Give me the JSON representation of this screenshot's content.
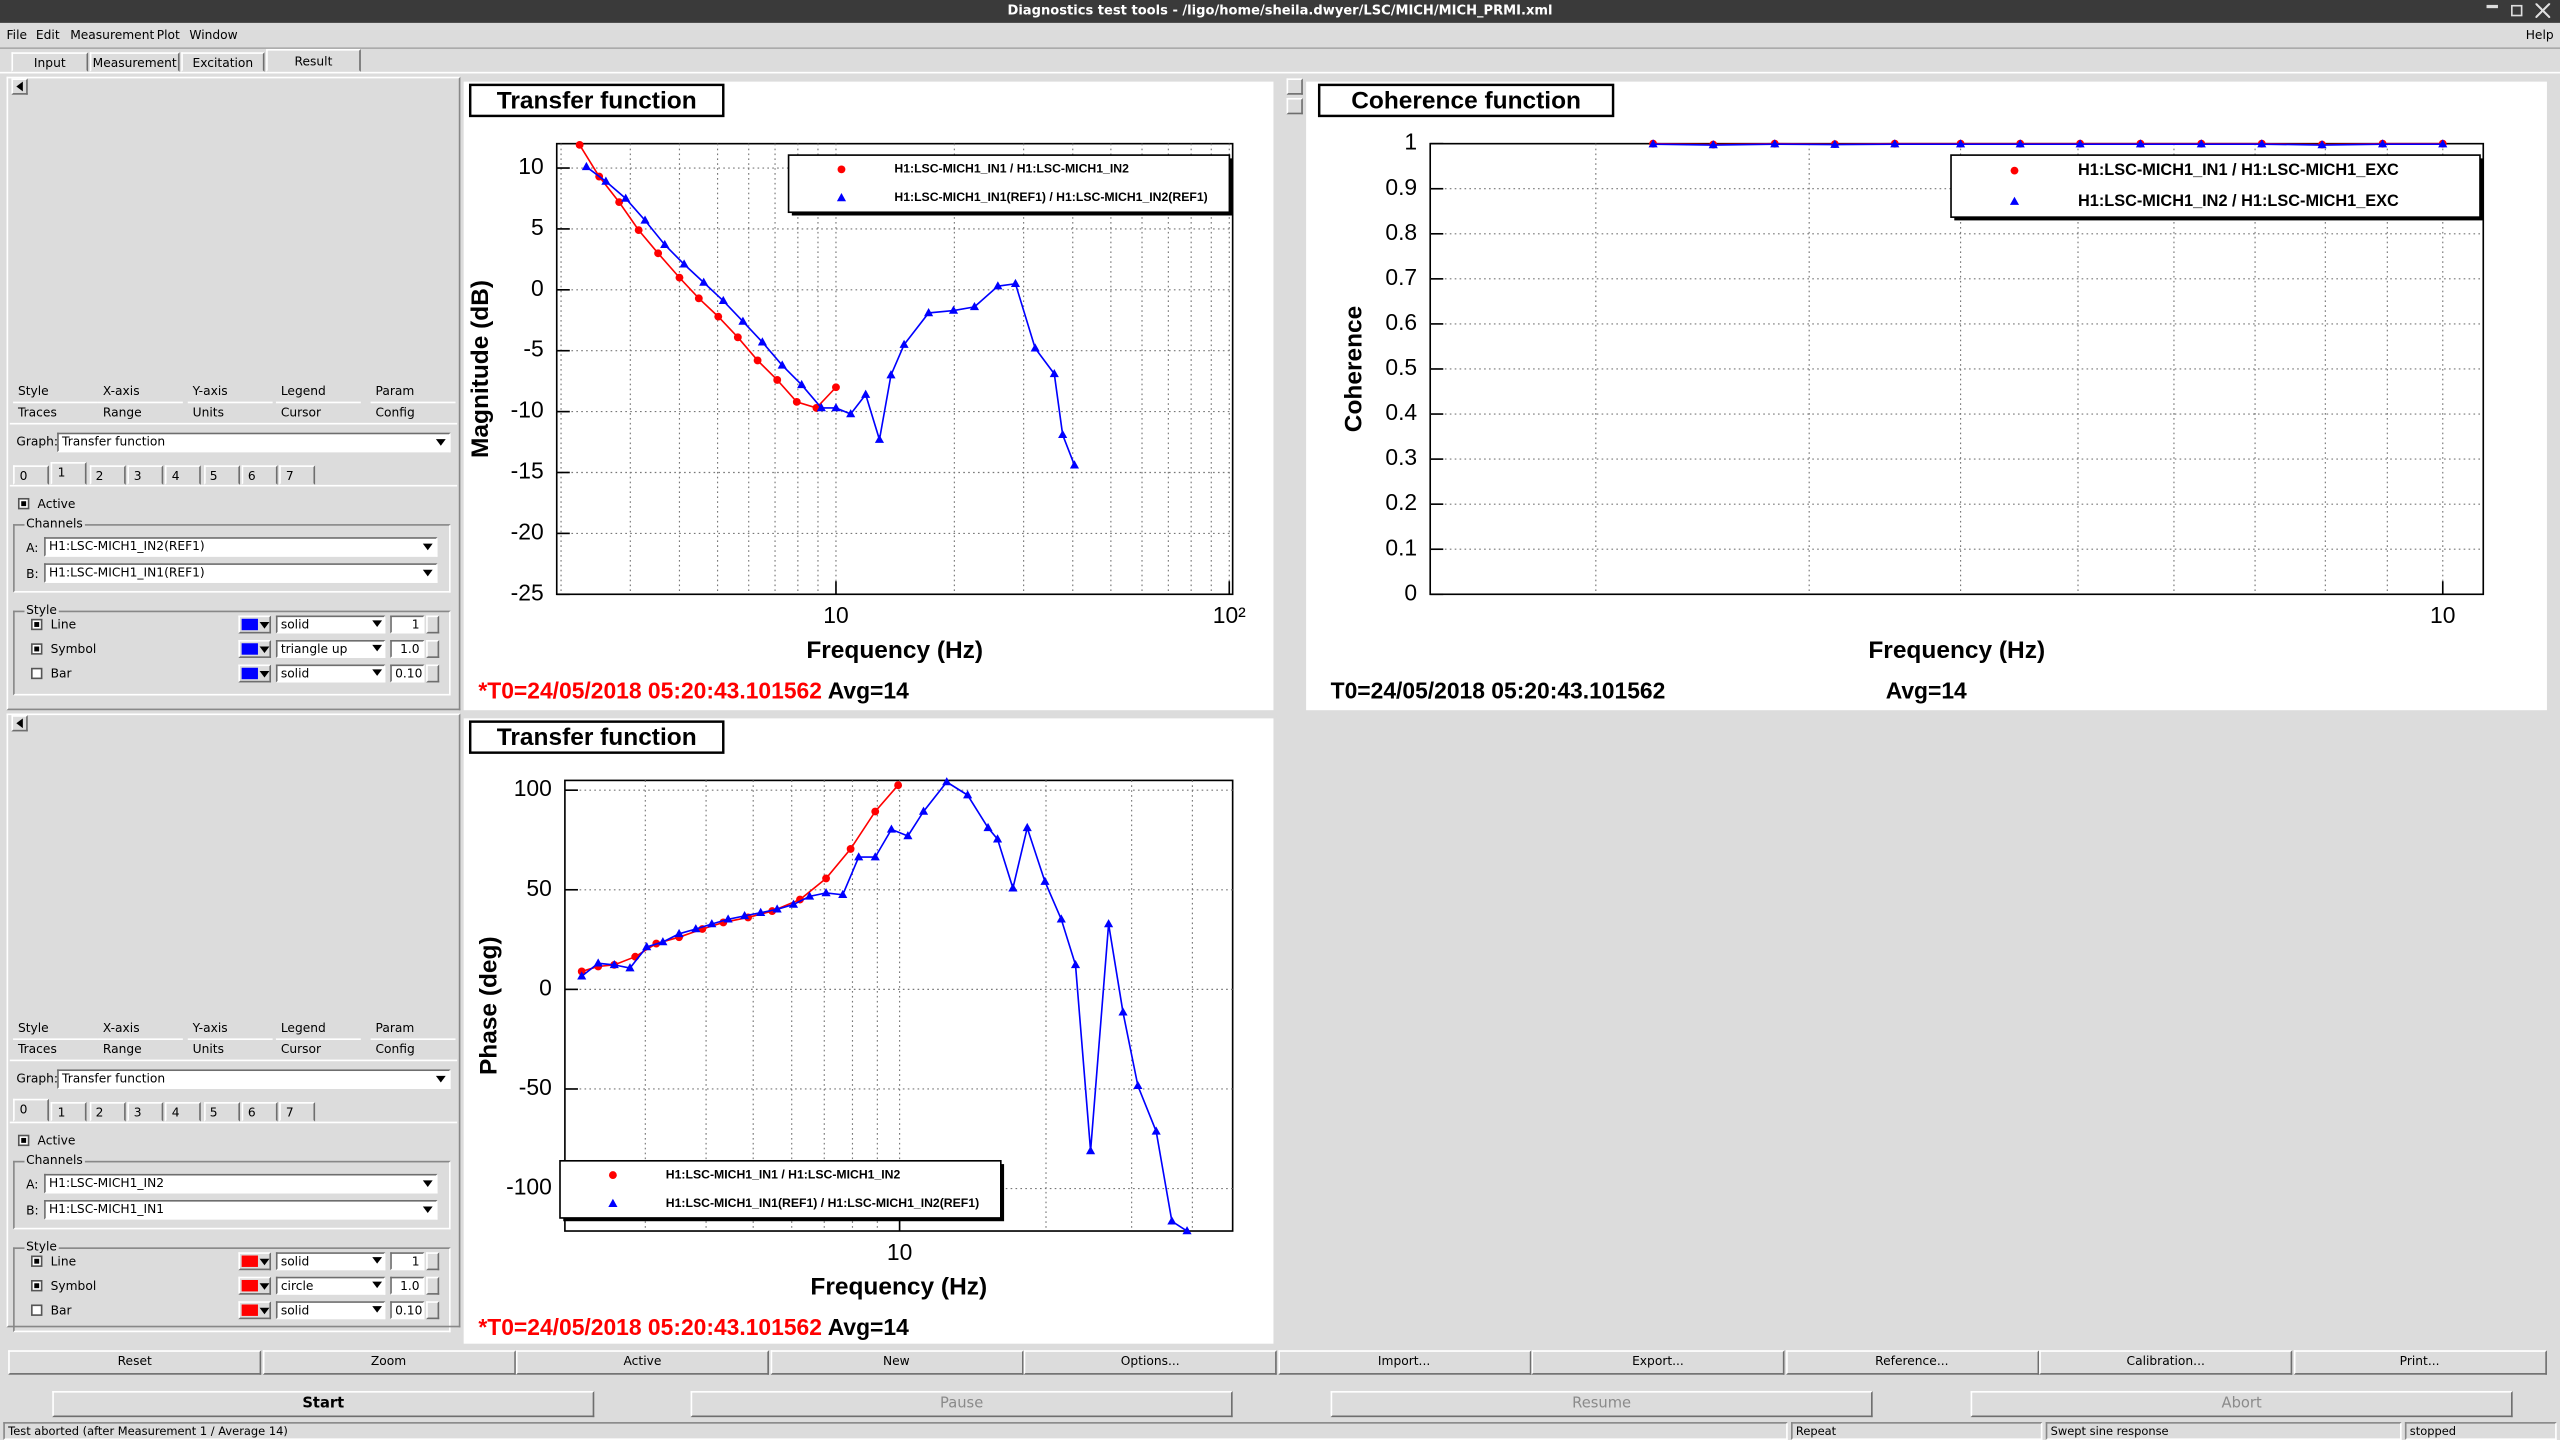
{
  "window": {
    "title": "Diagnostics test tools - /ligo/home/sheila.dwyer/LSC/MICH/MICH_PRMI.xml"
  },
  "menu": [
    "File",
    "Edit",
    "Measurement",
    "Plot",
    "Window"
  ],
  "help": "Help",
  "tabs": [
    "Input",
    "Measurement",
    "Excitation",
    "Result"
  ],
  "selected_tab": 3,
  "panels": [
    {
      "tabs_row1": [
        "Style",
        "X-axis",
        "Y-axis",
        "Legend",
        "Param"
      ],
      "tabs_row2": [
        "Traces",
        "Range",
        "Units",
        "Cursor",
        "Config"
      ],
      "graph_label": "Graph:",
      "graph": "Transfer function",
      "trace_tabs": [
        "0",
        "1",
        "2",
        "3",
        "4",
        "5",
        "6",
        "7"
      ],
      "selected_trace": 1,
      "active": "Active",
      "active_checked": true,
      "channels_label": "Channels",
      "a_label": "A:",
      "a": "H1:LSC-MICH1_IN2(REF1)",
      "b_label": "B:",
      "b": "H1:LSC-MICH1_IN1(REF1)",
      "style_label": "Style",
      "color": "#0000ff",
      "rows": [
        {
          "label": "Line",
          "checked": true,
          "style": "solid",
          "size": "1"
        },
        {
          "label": "Symbol",
          "checked": true,
          "style": "triangle up",
          "size": "1.0"
        },
        {
          "label": "Bar",
          "checked": false,
          "style": "solid",
          "size": "0.10"
        }
      ]
    },
    {
      "tabs_row1": [
        "Style",
        "X-axis",
        "Y-axis",
        "Legend",
        "Param"
      ],
      "tabs_row2": [
        "Traces",
        "Range",
        "Units",
        "Cursor",
        "Config"
      ],
      "graph_label": "Graph:",
      "graph": "Transfer function",
      "trace_tabs": [
        "0",
        "1",
        "2",
        "3",
        "4",
        "5",
        "6",
        "7"
      ],
      "selected_trace": 0,
      "active": "Active",
      "active_checked": true,
      "channels_label": "Channels",
      "a_label": "A:",
      "a": "H1:LSC-MICH1_IN2",
      "b_label": "B:",
      "b": "H1:LSC-MICH1_IN1",
      "style_label": "Style",
      "color": "#ff0000",
      "rows": [
        {
          "label": "Line",
          "checked": true,
          "style": "solid",
          "size": "1"
        },
        {
          "label": "Symbol",
          "checked": true,
          "style": "circle",
          "size": "1.0"
        },
        {
          "label": "Bar",
          "checked": false,
          "style": "solid",
          "size": "0.10"
        }
      ]
    }
  ],
  "chart_data": [
    {
      "type": "line",
      "title": "Transfer function",
      "xlabel": "Frequency (Hz)",
      "ylabel": "Magnitude (dB)",
      "xscale": "log",
      "xlim": [
        1.95,
        102
      ],
      "ylim": [
        -25,
        12
      ],
      "xticks": [
        10,
        {
          "value": 100,
          "label": "10²"
        }
      ],
      "xgrid": [
        2,
        3,
        4,
        5,
        6,
        7,
        8,
        9,
        10,
        20,
        30,
        40,
        50,
        60,
        70,
        80,
        90,
        100
      ],
      "yticks": [
        10,
        5,
        0,
        -5,
        -10,
        -15,
        -20,
        -25
      ],
      "grid": true,
      "legend": "upper right",
      "stamp": "*T0=24/05/2018 05:20:43.101562",
      "stamp_color": "#ff0000",
      "avg": "Avg=14",
      "series": [
        {
          "name": "H1:LSC-MICH1_IN1 / H1:LSC-MICH1_IN2",
          "color": "#ff0000",
          "marker": "circle",
          "x": [
            2.23,
            2.5,
            2.81,
            3.15,
            3.53,
            4.0,
            4.48,
            5.02,
            5.63,
            6.32,
            7.09,
            7.95,
            8.92,
            10.0
          ],
          "values": [
            11.9,
            9.3,
            7.2,
            4.9,
            3.0,
            1.0,
            -0.7,
            -2.2,
            -3.9,
            -5.8,
            -7.4,
            -9.2,
            -9.7,
            -8.0
          ]
        },
        {
          "name": "H1:LSC-MICH1_IN1(REF1) / H1:LSC-MICH1_IN2(REF1)",
          "color": "#0000ff",
          "marker": "triangle",
          "x": [
            2.32,
            2.6,
            2.92,
            3.27,
            3.67,
            4.11,
            4.61,
            5.17,
            5.8,
            6.5,
            7.3,
            8.18,
            9.18,
            10.0,
            10.9,
            11.9,
            12.9,
            13.8,
            14.9,
            17.2,
            19.9,
            22.5,
            25.8,
            28.6,
            32.1,
            35.9,
            37.7,
            40.4
          ],
          "values": [
            10.1,
            8.9,
            7.5,
            5.7,
            3.7,
            2.1,
            0.6,
            -0.9,
            -2.6,
            -4.3,
            -6.2,
            -7.8,
            -9.7,
            -9.7,
            -10.2,
            -8.6,
            -12.3,
            -7.0,
            -4.5,
            -1.9,
            -1.7,
            -1.4,
            0.3,
            0.5,
            -4.8,
            -6.9,
            -11.9,
            -14.4
          ]
        }
      ]
    },
    {
      "type": "line",
      "title": "Coherence function",
      "xlabel": "Frequency (Hz)",
      "ylabel": "Coherence",
      "xscale": "log",
      "xlim": [
        1.46,
        10.8
      ],
      "ylim": [
        0,
        1
      ],
      "xticks": [
        10
      ],
      "xgrid": [
        2,
        3,
        4,
        5,
        6,
        7,
        8,
        9,
        10
      ],
      "yticks": [
        1,
        0.9,
        0.8,
        0.7,
        0.6,
        0.5,
        0.4,
        0.3,
        0.2,
        0.1,
        0
      ],
      "grid": true,
      "legend": "upper right",
      "stamp": "T0=24/05/2018 05:20:43.101562",
      "stamp_color": "#000000",
      "avg": "Avg=14",
      "series": [
        {
          "name": "H1:LSC-MICH1_IN1 / H1:LSC-MICH1_EXC",
          "color": "#ff0000",
          "marker": "circle",
          "x": [
            2.23,
            2.5,
            2.81,
            3.15,
            3.53,
            4.0,
            4.48,
            5.02,
            5.63,
            6.32,
            7.09,
            7.95,
            8.92,
            10.0
          ],
          "values": [
            1,
            0.998,
            1,
            0.999,
            1,
            1,
            1,
            1,
            1,
            1,
            1,
            0.998,
            1,
            1
          ]
        },
        {
          "name": "H1:LSC-MICH1_IN2 / H1:LSC-MICH1_EXC",
          "color": "#0000ff",
          "marker": "triangle",
          "x": [
            2.23,
            2.5,
            2.81,
            3.15,
            3.53,
            4.0,
            4.48,
            5.02,
            5.63,
            6.32,
            7.09,
            7.95,
            8.92,
            10.0
          ],
          "values": [
            0.999,
            0.997,
            0.999,
            0.998,
            0.999,
            0.999,
            0.999,
            0.999,
            0.999,
            0.999,
            0.999,
            0.997,
            0.999,
            0.999
          ]
        }
      ]
    },
    {
      "type": "line",
      "title": "Transfer function",
      "xlabel": "Frequency (Hz)",
      "ylabel": "Phase (deg)",
      "xscale": "log",
      "xlim": [
        2.05,
        48.4
      ],
      "ylim": [
        -121.3,
        104.9
      ],
      "xticks": [
        10
      ],
      "xgrid": [
        3,
        4,
        5,
        6,
        7,
        8,
        9,
        10,
        20,
        30,
        40
      ],
      "yticks": [
        100,
        50,
        0,
        -50,
        -100
      ],
      "grid": true,
      "legend": "lower left",
      "stamp": "*T0=24/05/2018 05:20:43.101562",
      "stamp_color": "#ff0000",
      "avg": "Avg=14",
      "series": [
        {
          "name": "H1:LSC-MICH1_IN1 / H1:LSC-MICH1_IN2",
          "color": "#ff0000",
          "marker": "circle",
          "x": [
            2.22,
            2.4,
            2.59,
            2.86,
            3.16,
            3.52,
            3.93,
            4.34,
            4.88,
            5.47,
            6.24,
            7.06,
            7.93,
            8.91,
            9.93
          ],
          "values": [
            9.0,
            11.5,
            12.3,
            16.4,
            23.0,
            26.2,
            30.3,
            33.6,
            36.1,
            39.3,
            45.1,
            55.7,
            70.5,
            89.3,
            102.5
          ]
        },
        {
          "name": "H1:LSC-MICH1_IN1(REF1) / H1:LSC-MICH1_IN2(REF1)",
          "color": "#0000ff",
          "marker": "triangle",
          "x": [
            2.22,
            2.4,
            2.59,
            2.79,
            3.02,
            3.26,
            3.52,
            3.81,
            4.11,
            4.44,
            4.8,
            5.18,
            5.6,
            6.05,
            6.53,
            7.06,
            7.64,
            8.24,
            8.91,
            9.62,
            10.4,
            11.2,
            12.5,
            13.8,
            15.2,
            15.9,
            17.1,
            18.3,
            19.9,
            21.5,
            23.0,
            24.7,
            26.9,
            28.8,
            30.9,
            33.7,
            36.3,
            39.0
          ],
          "values": [
            6.6,
            13.1,
            12.3,
            10.7,
            21.3,
            23.8,
            27.9,
            30.3,
            32.8,
            35.2,
            36.9,
            38.5,
            40.2,
            42.6,
            46.7,
            48.4,
            47.5,
            66.4,
            66.4,
            80.3,
            77.0,
            89.3,
            104.1,
            97.5,
            81.1,
            75.4,
            50.8,
            81.1,
            54.1,
            35.2,
            12.3,
            -81.1,
            32.8,
            -11.5,
            -48.4,
            -71.3,
            -116.4,
            -121.3
          ]
        }
      ]
    }
  ],
  "buttons": [
    "Reset",
    "Zoom",
    "Active",
    "New",
    "Options...",
    "Import...",
    "Export...",
    "Reference...",
    "Calibration...",
    "Print..."
  ],
  "controls": [
    {
      "label": "Start",
      "enabled": true
    },
    {
      "label": "Pause",
      "enabled": false
    },
    {
      "label": "Resume",
      "enabled": false
    },
    {
      "label": "Abort",
      "enabled": false
    }
  ],
  "status": [
    "Test aborted (after Measurement 1 / Average 14)",
    "Repeat",
    "Swept sine response",
    "stopped"
  ]
}
